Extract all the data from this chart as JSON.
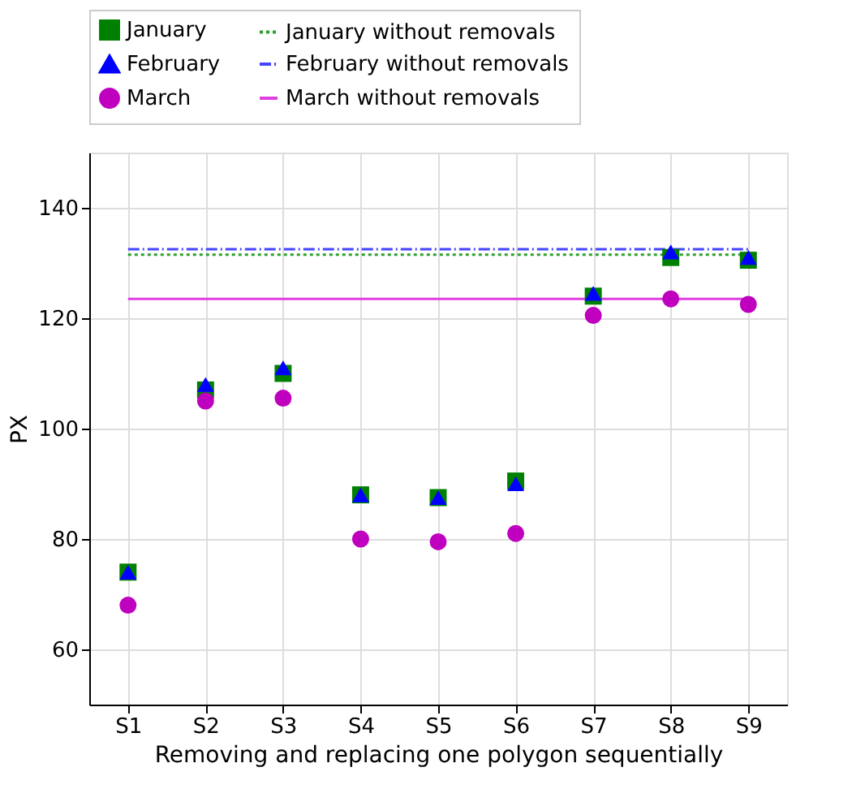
{
  "chart_data": {
    "type": "scatter",
    "xlabel": "Removing and replacing one polygon sequentially",
    "ylabel": "PX",
    "categories": [
      "S1",
      "S2",
      "S3",
      "S4",
      "S5",
      "S6",
      "S7",
      "S8",
      "S9"
    ],
    "ylim": [
      50,
      150
    ],
    "yticks": [
      60,
      80,
      100,
      120,
      140
    ],
    "grid": true,
    "legend": "top",
    "series": [
      {
        "name": "January",
        "marker": "square",
        "color": "#008000",
        "values": [
          74,
          107,
          110,
          88,
          87.5,
          90.5,
          124,
          131,
          130.5
        ]
      },
      {
        "name": "February",
        "marker": "triangle",
        "color": "#0000ff",
        "values": [
          74,
          108,
          111,
          88,
          87.5,
          90,
          124.5,
          132,
          131
        ]
      },
      {
        "name": "March",
        "marker": "circle",
        "color": "#bf00bf",
        "values": [
          68,
          105,
          105.5,
          80,
          79.5,
          81,
          120.5,
          123.5,
          122.5
        ]
      },
      {
        "name": "January without removals",
        "type": "line",
        "line_style": "dotted",
        "color": "#2ca02c",
        "values": [
          131.5,
          131.5,
          131.5,
          131.5,
          131.5,
          131.5,
          131.5,
          131.5,
          131.5
        ]
      },
      {
        "name": "February without removals",
        "type": "line",
        "line_style": "dashdot",
        "color": "#4444ff",
        "values": [
          132.5,
          132.5,
          132.5,
          132.5,
          132.5,
          132.5,
          132.5,
          132.5,
          132.5
        ]
      },
      {
        "name": "March without removals",
        "type": "line",
        "line_style": "solid",
        "color": "#e040e0",
        "values": [
          123.5,
          123.5,
          123.5,
          123.5,
          123.5,
          123.5,
          123.5,
          123.5,
          123.5
        ]
      }
    ]
  }
}
